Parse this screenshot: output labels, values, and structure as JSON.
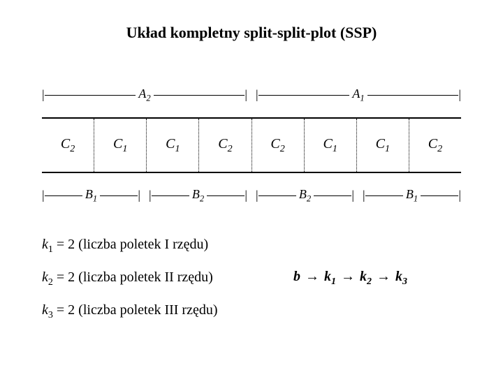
{
  "title": "Układ kompletny split-split-plot (SSP)",
  "diagram": {
    "top_ranges": [
      {
        "label_base": "A",
        "label_sub": "2"
      },
      {
        "label_base": "A",
        "label_sub": "1"
      }
    ],
    "cells": [
      {
        "base": "C",
        "sub": "2"
      },
      {
        "base": "C",
        "sub": "1"
      },
      {
        "base": "C",
        "sub": "1"
      },
      {
        "base": "C",
        "sub": "2"
      },
      {
        "base": "C",
        "sub": "2"
      },
      {
        "base": "C",
        "sub": "1"
      },
      {
        "base": "C",
        "sub": "1"
      },
      {
        "base": "C",
        "sub": "2"
      }
    ],
    "bottom_ranges": [
      {
        "label_base": "B",
        "label_sub": "1"
      },
      {
        "label_base": "B",
        "label_sub": "2"
      },
      {
        "label_base": "B",
        "label_sub": "2"
      },
      {
        "label_base": "B",
        "label_sub": "1"
      }
    ]
  },
  "notes": [
    {
      "var": "k",
      "sub": "1",
      "rest": " = 2 (liczba poletek I rzędu)"
    },
    {
      "var": "k",
      "sub": "2",
      "rest": " = 2 (liczba poletek II rzędu)"
    },
    {
      "var": "k",
      "sub": "3",
      "rest": " = 2 (liczba poletek III rzędu)"
    }
  ],
  "chain": {
    "items": [
      {
        "base": "b",
        "sub": ""
      },
      {
        "base": "k",
        "sub": "1"
      },
      {
        "base": "k",
        "sub": "2"
      },
      {
        "base": "k",
        "sub": "3"
      }
    ],
    "arrow": "→"
  }
}
